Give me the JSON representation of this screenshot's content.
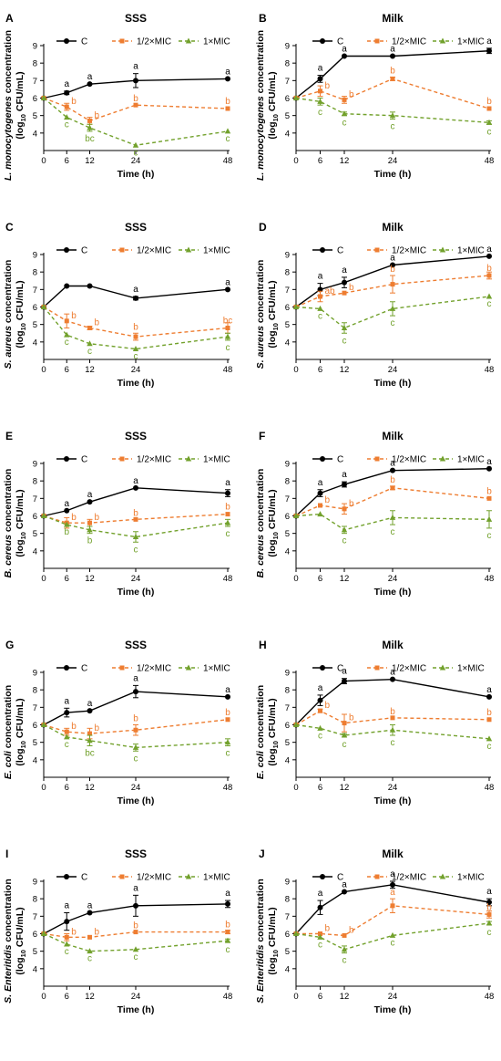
{
  "figure": {
    "colors": {
      "C": "#000000",
      "half": "#ee7d31",
      "one": "#72a12c"
    },
    "xlabel": "Time (h)",
    "ylabel_unit": "(log10 CFU/mL)",
    "xticks": [
      0,
      6,
      12,
      24,
      48
    ],
    "yticks": [
      4,
      5,
      6,
      7,
      8,
      9
    ],
    "legend": [
      "C",
      "1/2×MIC",
      "1×MIC"
    ]
  },
  "chart_data": [
    {
      "id": "A",
      "type": "line",
      "title": "SSS",
      "organism": "L. monocytogenes",
      "ylim": [
        3,
        9
      ],
      "xlim": [
        0,
        48
      ],
      "x": [
        0,
        6,
        12,
        24,
        48
      ],
      "series": [
        {
          "name": "C",
          "values": [
            6.0,
            6.3,
            6.8,
            7.0,
            7.1
          ],
          "errors": [
            0,
            0.1,
            0,
            0.4,
            0
          ],
          "letters": [
            "",
            "a",
            "a",
            "a",
            "a"
          ]
        },
        {
          "name": "1/2×MIC",
          "values": [
            6.0,
            5.5,
            4.7,
            5.6,
            5.4
          ],
          "errors": [
            0,
            0.2,
            0.2,
            0,
            0
          ],
          "letters": [
            "",
            "b",
            "b",
            "b",
            "b"
          ]
        },
        {
          "name": "1×MIC",
          "values": [
            6.0,
            4.9,
            4.3,
            3.3,
            4.1
          ],
          "errors": [
            0,
            0,
            0.2,
            0,
            0
          ],
          "letters": [
            "",
            "c",
            "bc",
            "c",
            "c"
          ]
        }
      ]
    },
    {
      "id": "B",
      "type": "line",
      "title": "Milk",
      "organism": "L. monocytogenes",
      "ylim": [
        3,
        9
      ],
      "xlim": [
        0,
        48
      ],
      "x": [
        0,
        6,
        12,
        24,
        48
      ],
      "series": [
        {
          "name": "C",
          "values": [
            6.0,
            7.1,
            8.4,
            8.4,
            8.7
          ],
          "errors": [
            0,
            0.2,
            0,
            0,
            0.15
          ],
          "letters": [
            "",
            "a",
            "a",
            "a",
            "a"
          ]
        },
        {
          "name": "1/2×MIC",
          "values": [
            6.0,
            6.4,
            5.9,
            7.1,
            5.4
          ],
          "errors": [
            0,
            0.3,
            0.2,
            0.1,
            0
          ],
          "letters": [
            "",
            "b",
            "b",
            "b",
            "b"
          ]
        },
        {
          "name": "1×MIC",
          "values": [
            6.0,
            5.8,
            5.1,
            5.0,
            4.6
          ],
          "errors": [
            0,
            0.2,
            0.1,
            0.2,
            0.1
          ],
          "letters": [
            "",
            "c",
            "c",
            "c",
            "c"
          ]
        }
      ]
    },
    {
      "id": "C",
      "type": "line",
      "title": "SSS",
      "organism": "S. aureus",
      "ylim": [
        3,
        9
      ],
      "xlim": [
        0,
        48
      ],
      "x": [
        0,
        6,
        12,
        24,
        48
      ],
      "series": [
        {
          "name": "C",
          "values": [
            6.0,
            7.2,
            7.2,
            6.5,
            7.0
          ],
          "errors": [
            0,
            0,
            0,
            0.1,
            0
          ],
          "letters": [
            "",
            "",
            "",
            "a",
            "a"
          ]
        },
        {
          "name": "1/2×MIC",
          "values": [
            6.0,
            5.2,
            4.8,
            4.3,
            4.8
          ],
          "errors": [
            0,
            0.4,
            0.1,
            0.2,
            0.3
          ],
          "letters": [
            "",
            "b",
            "b",
            "b",
            "bc"
          ]
        },
        {
          "name": "1×MIC",
          "values": [
            6.0,
            4.4,
            3.9,
            3.6,
            4.3
          ],
          "errors": [
            0,
            0,
            0,
            0,
            0.2
          ],
          "letters": [
            "",
            "c",
            "c",
            "c",
            "c"
          ]
        }
      ]
    },
    {
      "id": "D",
      "type": "line",
      "title": "Milk",
      "organism": "S. aureus",
      "ylim": [
        3,
        9
      ],
      "xlim": [
        0,
        48
      ],
      "x": [
        0,
        6,
        12,
        24,
        48
      ],
      "series": [
        {
          "name": "C",
          "values": [
            6.0,
            7.0,
            7.4,
            8.4,
            8.9
          ],
          "errors": [
            0,
            0.35,
            0.3,
            0,
            0
          ],
          "letters": [
            "",
            "a",
            "a",
            "a",
            "a"
          ]
        },
        {
          "name": "1/2×MIC",
          "values": [
            6.0,
            6.6,
            6.8,
            7.3,
            7.8
          ],
          "errors": [
            0,
            0.3,
            0,
            0.5,
            0.2
          ],
          "letters": [
            "",
            "ab",
            "b",
            "b",
            "b"
          ]
        },
        {
          "name": "1×MIC",
          "values": [
            6.0,
            5.9,
            4.8,
            5.9,
            6.6
          ],
          "errors": [
            0,
            0,
            0.3,
            0.4,
            0
          ],
          "letters": [
            "",
            "c",
            "c",
            "c",
            "c"
          ]
        }
      ]
    },
    {
      "id": "E",
      "type": "line",
      "title": "SSS",
      "organism": "B. cereus",
      "ylim": [
        3,
        9
      ],
      "xlim": [
        0,
        48
      ],
      "x": [
        0,
        6,
        12,
        24,
        48
      ],
      "series": [
        {
          "name": "C",
          "values": [
            6.0,
            6.3,
            6.8,
            7.6,
            7.3
          ],
          "errors": [
            0,
            0,
            0,
            0,
            0.2
          ],
          "letters": [
            "",
            "a",
            "a",
            "a",
            "a"
          ]
        },
        {
          "name": "1/2×MIC",
          "values": [
            6.0,
            5.6,
            5.6,
            5.8,
            6.1
          ],
          "errors": [
            0,
            0.3,
            0.2,
            0,
            0
          ],
          "letters": [
            "",
            "b",
            "b",
            "b",
            "b"
          ]
        },
        {
          "name": "1×MIC",
          "values": [
            6.0,
            5.5,
            5.2,
            4.8,
            5.6
          ],
          "errors": [
            0,
            0,
            0.2,
            0.3,
            0.2
          ],
          "letters": [
            "",
            "b",
            "b",
            "c",
            "c"
          ]
        }
      ]
    },
    {
      "id": "F",
      "type": "line",
      "title": "Milk",
      "organism": "B. cereus",
      "ylim": [
        3,
        9
      ],
      "xlim": [
        0,
        48
      ],
      "x": [
        0,
        6,
        12,
        24,
        48
      ],
      "series": [
        {
          "name": "C",
          "values": [
            6.0,
            7.3,
            7.8,
            8.6,
            8.7
          ],
          "errors": [
            0,
            0.2,
            0.15,
            0,
            0
          ],
          "letters": [
            "",
            "a",
            "a",
            "a",
            "a"
          ]
        },
        {
          "name": "1/2×MIC",
          "values": [
            6.0,
            6.6,
            6.4,
            7.6,
            7.0
          ],
          "errors": [
            0,
            0,
            0.3,
            0.1,
            0
          ],
          "letters": [
            "",
            "b",
            "b",
            "b",
            "b"
          ]
        },
        {
          "name": "1×MIC",
          "values": [
            6.0,
            6.1,
            5.2,
            5.9,
            5.8
          ],
          "errors": [
            0,
            0,
            0.2,
            0.4,
            0.5
          ],
          "letters": [
            "",
            "",
            "c",
            "c",
            "c"
          ]
        }
      ]
    },
    {
      "id": "G",
      "type": "line",
      "title": "SSS",
      "organism": "E. coli",
      "ylim": [
        3,
        9
      ],
      "xlim": [
        0,
        48
      ],
      "x": [
        0,
        6,
        12,
        24,
        48
      ],
      "series": [
        {
          "name": "C",
          "values": [
            6.0,
            6.7,
            6.8,
            7.9,
            7.6
          ],
          "errors": [
            0,
            0.25,
            0,
            0.35,
            0
          ],
          "letters": [
            "",
            "a",
            "a",
            "a",
            "a"
          ]
        },
        {
          "name": "1/2×MIC",
          "values": [
            6.0,
            5.6,
            5.5,
            5.7,
            6.3
          ],
          "errors": [
            0,
            0.2,
            0.3,
            0.3,
            0
          ],
          "letters": [
            "",
            "b",
            "b",
            "b",
            "b"
          ]
        },
        {
          "name": "1×MIC",
          "values": [
            6.0,
            5.3,
            5.1,
            4.7,
            5.0
          ],
          "errors": [
            0,
            0,
            0.3,
            0.2,
            0.2
          ],
          "letters": [
            "",
            "c",
            "bc",
            "c",
            "c"
          ]
        }
      ]
    },
    {
      "id": "H",
      "type": "line",
      "title": "Milk",
      "organism": "E. coli",
      "ylim": [
        3,
        9
      ],
      "xlim": [
        0,
        48
      ],
      "x": [
        0,
        6,
        12,
        24,
        48
      ],
      "series": [
        {
          "name": "C",
          "values": [
            6.0,
            7.4,
            8.5,
            8.6,
            7.6
          ],
          "errors": [
            0,
            0.3,
            0.15,
            0,
            0
          ],
          "letters": [
            "",
            "a",
            "a",
            "a",
            "a"
          ]
        },
        {
          "name": "1/2×MIC",
          "values": [
            6.0,
            6.8,
            6.1,
            6.4,
            6.3
          ],
          "errors": [
            0,
            0.1,
            0.5,
            0,
            0
          ],
          "letters": [
            "",
            "b",
            "b",
            "b",
            "b"
          ]
        },
        {
          "name": "1×MIC",
          "values": [
            6.0,
            5.8,
            5.4,
            5.7,
            5.2
          ],
          "errors": [
            0,
            0,
            0.1,
            0.3,
            0
          ],
          "letters": [
            "",
            "c",
            "c",
            "c",
            "c"
          ]
        }
      ]
    },
    {
      "id": "I",
      "type": "line",
      "title": "SSS",
      "organism": "S. Enteritidis",
      "ylim": [
        3,
        9
      ],
      "xlim": [
        0,
        48
      ],
      "x": [
        0,
        6,
        12,
        24,
        48
      ],
      "series": [
        {
          "name": "C",
          "values": [
            6.0,
            6.7,
            7.2,
            7.6,
            7.7
          ],
          "errors": [
            0,
            0.5,
            0,
            0.6,
            0.2
          ],
          "letters": [
            "",
            "a",
            "a",
            "a",
            "a"
          ]
        },
        {
          "name": "1/2×MIC",
          "values": [
            6.0,
            5.8,
            5.8,
            6.1,
            6.1
          ],
          "errors": [
            0,
            0.2,
            0,
            0,
            0.1
          ],
          "letters": [
            "",
            "b",
            "b",
            "b",
            "b"
          ]
        },
        {
          "name": "1×MIC",
          "values": [
            6.0,
            5.4,
            5.0,
            5.1,
            5.6
          ],
          "errors": [
            0,
            0,
            0,
            0,
            0.1
          ],
          "letters": [
            "",
            "c",
            "c",
            "c",
            "c"
          ]
        }
      ]
    },
    {
      "id": "J",
      "type": "line",
      "title": "Milk",
      "organism": "S. Enteritidis",
      "ylim": [
        3,
        9
      ],
      "xlim": [
        0,
        48
      ],
      "x": [
        0,
        6,
        12,
        24,
        48
      ],
      "series": [
        {
          "name": "C",
          "values": [
            6.0,
            7.5,
            8.4,
            8.8,
            7.8
          ],
          "errors": [
            0,
            0.4,
            0,
            0.2,
            0.2
          ],
          "letters": [
            "",
            "a",
            "a",
            "a",
            "a"
          ]
        },
        {
          "name": "1/2×MIC",
          "values": [
            6.0,
            6.0,
            5.9,
            7.6,
            7.1
          ],
          "errors": [
            0,
            0,
            0,
            0.4,
            0.2
          ],
          "letters": [
            "",
            "b",
            "b",
            "a",
            "b"
          ]
        },
        {
          "name": "1×MIC",
          "values": [
            6.0,
            5.8,
            5.1,
            5.9,
            6.6
          ],
          "errors": [
            0,
            0,
            0.2,
            0,
            0.1
          ],
          "letters": [
            "",
            "c",
            "c",
            "c",
            "c"
          ]
        }
      ]
    }
  ]
}
